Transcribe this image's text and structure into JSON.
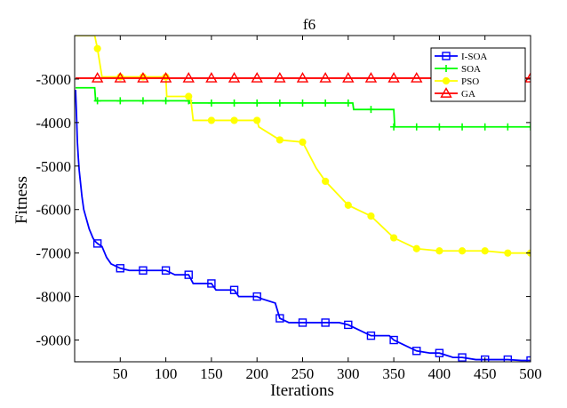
{
  "chart_data": {
    "type": "line",
    "title": "f6",
    "xlabel": "Iterations",
    "ylabel": "Fitness",
    "xlim": [
      0,
      500
    ],
    "ylim": [
      -9500,
      -2000
    ],
    "xticks": [
      50,
      100,
      150,
      200,
      250,
      300,
      350,
      400,
      450,
      500
    ],
    "xtick_labels": [
      "50",
      "100",
      "150",
      "200",
      "250",
      "300",
      "350",
      "400",
      "450",
      "500"
    ],
    "yticks": [
      -9000,
      -8000,
      -7000,
      -6000,
      -5000,
      -4000,
      -3000
    ],
    "ytick_labels": [
      "-9000",
      "-8000",
      "-7000",
      "-6000",
      "-5000",
      "-4000",
      "-3000"
    ],
    "grid": false,
    "legend_position": "top-right",
    "series": [
      {
        "name": "I-SOA",
        "color": "#0000ff",
        "marker": "square",
        "x": [
          1,
          2,
          3,
          4,
          5,
          6,
          7,
          8,
          9,
          10,
          12,
          14,
          16,
          18,
          20,
          22,
          25,
          30,
          35,
          40,
          45,
          50,
          60,
          75,
          100,
          110,
          125,
          130,
          150,
          155,
          175,
          180,
          200,
          205,
          220,
          225,
          235,
          250,
          275,
          290,
          300,
          310,
          325,
          345,
          350,
          360,
          375,
          390,
          400,
          415,
          425,
          440,
          450,
          470,
          475,
          490,
          500
        ],
        "y": [
          -3250,
          -3800,
          -4450,
          -4800,
          -5100,
          -5300,
          -5500,
          -5700,
          -5850,
          -6000,
          -6150,
          -6300,
          -6450,
          -6550,
          -6650,
          -6720,
          -6780,
          -6850,
          -7100,
          -7250,
          -7300,
          -7350,
          -7400,
          -7400,
          -7400,
          -7500,
          -7500,
          -7700,
          -7700,
          -7850,
          -7850,
          -8000,
          -8000,
          -8050,
          -8150,
          -8500,
          -8600,
          -8600,
          -8600,
          -8600,
          -8650,
          -8750,
          -8900,
          -8900,
          -9000,
          -9100,
          -9250,
          -9300,
          -9300,
          -9400,
          -9400,
          -9450,
          -9450,
          -9450,
          -9450,
          -9470,
          -9470
        ],
        "marker_x": [
          25,
          50,
          75,
          100,
          125,
          150,
          175,
          200,
          225,
          250,
          275,
          300,
          325,
          350,
          375,
          400,
          425,
          450,
          475,
          500
        ],
        "marker_y": [
          -6780,
          -7350,
          -7400,
          -7400,
          -7500,
          -7700,
          -7850,
          -8000,
          -8500,
          -8600,
          -8600,
          -8650,
          -8900,
          -9000,
          -9250,
          -9300,
          -9400,
          -9450,
          -9450,
          -9470
        ]
      },
      {
        "name": "SOA",
        "color": "#00ff00",
        "marker": "plus",
        "x": [
          1,
          22,
          23,
          125,
          126,
          305,
          306,
          350,
          351,
          500
        ],
        "y": [
          -3200,
          -3200,
          -3500,
          -3500,
          -3550,
          -3550,
          -3700,
          -3700,
          -4100,
          -4100
        ],
        "marker_x": [
          25,
          50,
          75,
          100,
          125,
          150,
          175,
          200,
          225,
          250,
          275,
          300,
          325,
          350,
          375,
          400,
          425,
          450,
          475,
          500
        ],
        "marker_y": [
          -3500,
          -3500,
          -3500,
          -3500,
          -3500,
          -3550,
          -3550,
          -3550,
          -3550,
          -3550,
          -3550,
          -3550,
          -3700,
          -4100,
          -4100,
          -4100,
          -4100,
          -4100,
          -4100,
          -4100
        ]
      },
      {
        "name": "PSO",
        "color": "#ffff00",
        "marker": "circle",
        "x": [
          1,
          22,
          25,
          30,
          100,
          101,
          127,
          130,
          150,
          200,
          202,
          225,
          250,
          265,
          275,
          300,
          325,
          350,
          375,
          400,
          425,
          450,
          475,
          500
        ],
        "y": [
          -2000,
          -2000,
          -2300,
          -2950,
          -2950,
          -3400,
          -3400,
          -3950,
          -3950,
          -3950,
          -4100,
          -4400,
          -4450,
          -5050,
          -5350,
          -5900,
          -6150,
          -6650,
          -6900,
          -6950,
          -6950,
          -6950,
          -7000,
          -7000
        ],
        "marker_x": [
          25,
          50,
          75,
          100,
          125,
          150,
          175,
          200,
          225,
          250,
          275,
          300,
          325,
          350,
          375,
          400,
          425,
          450,
          475,
          500
        ],
        "marker_y": [
          -2300,
          -2950,
          -2950,
          -2950,
          -3400,
          -3950,
          -3950,
          -3950,
          -4400,
          -4450,
          -5350,
          -5900,
          -6150,
          -6650,
          -6900,
          -6950,
          -6950,
          -6950,
          -7000,
          -7000
        ]
      },
      {
        "name": "GA",
        "color": "#ff0000",
        "marker": "triangle",
        "x": [
          1,
          500
        ],
        "y": [
          -2980,
          -2980
        ],
        "marker_x": [
          25,
          50,
          75,
          100,
          125,
          150,
          175,
          200,
          225,
          250,
          275,
          300,
          325,
          350,
          375,
          400,
          425,
          450,
          475,
          500
        ],
        "marker_y": [
          -2980,
          -2980,
          -2980,
          -2980,
          -2980,
          -2980,
          -2980,
          -2980,
          -2980,
          -2980,
          -2980,
          -2980,
          -2980,
          -2980,
          -2980,
          -2980,
          -2980,
          -2980,
          -2980,
          -2980
        ]
      }
    ]
  }
}
